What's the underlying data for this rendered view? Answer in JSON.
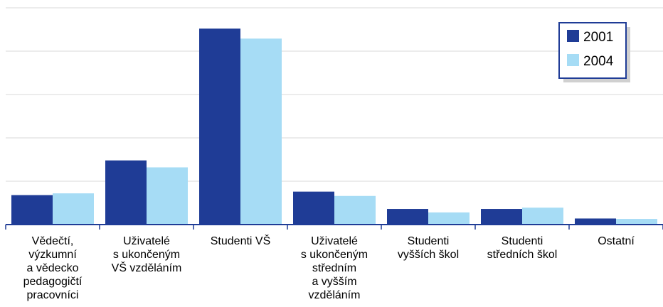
{
  "chart_data": {
    "type": "bar",
    "categories": [
      [
        "Vědečtí,",
        "výzkumní",
        "a vědecko",
        "pedagogičtí",
        "pracovníci"
      ],
      [
        "Uživatelé",
        "s ukončeným",
        "VŠ vzděláním"
      ],
      [
        "Studenti VŠ"
      ],
      [
        "Uživatelé",
        "s ukončeným",
        "středním",
        "a vyšším",
        "vzděláním"
      ],
      [
        "Studenti",
        "vyšších škol"
      ],
      [
        "Studenti",
        "středních škol"
      ],
      [
        "Ostatní"
      ]
    ],
    "series": [
      {
        "name": "2001",
        "color": "#1f3c96",
        "values": [
          6.8,
          14.8,
          45.2,
          7.6,
          3.6,
          3.6,
          1.4
        ]
      },
      {
        "name": "2004",
        "color": "#a6dcf5",
        "values": [
          7.2,
          13.2,
          42.9,
          6.6,
          2.8,
          3.9,
          1.3
        ]
      }
    ],
    "ylim": [
      0,
      50
    ],
    "ytick_step": 10,
    "grid": true,
    "legend_position": "top-right"
  }
}
